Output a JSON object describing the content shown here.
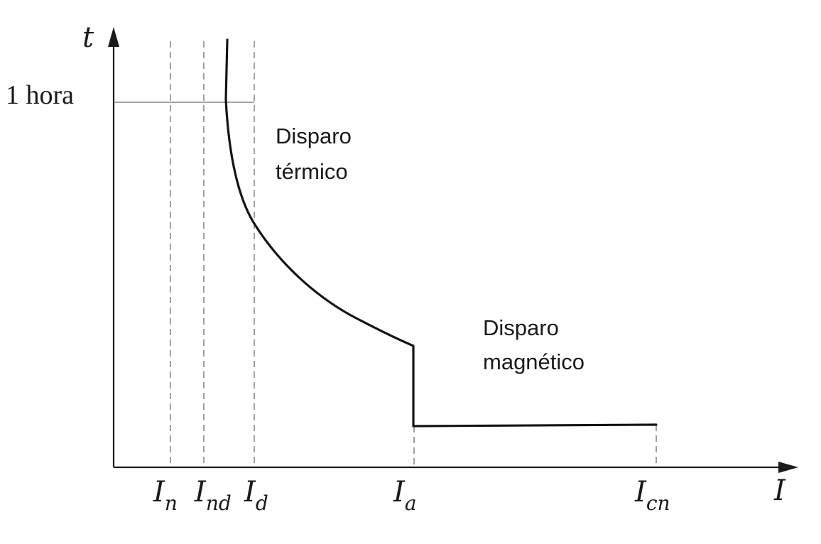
{
  "axes": {
    "y_label": "t",
    "x_label": "I",
    "y_reference_label": "1 hora"
  },
  "x_ticks": [
    {
      "main": "I",
      "sub": "n"
    },
    {
      "main": "I",
      "sub": "nd"
    },
    {
      "main": "I",
      "sub": "d"
    },
    {
      "main": "I",
      "sub": "a"
    },
    {
      "main": "I",
      "sub": "cn"
    }
  ],
  "regions": {
    "thermal": {
      "line1": "Disparo",
      "line2": "térmico"
    },
    "magnetic": {
      "line1": "Disparo",
      "line2": "magnético"
    }
  },
  "colors": {
    "ink": "#1a1a1a",
    "guide": "#6e6e6e",
    "background": "#ffffff"
  }
}
